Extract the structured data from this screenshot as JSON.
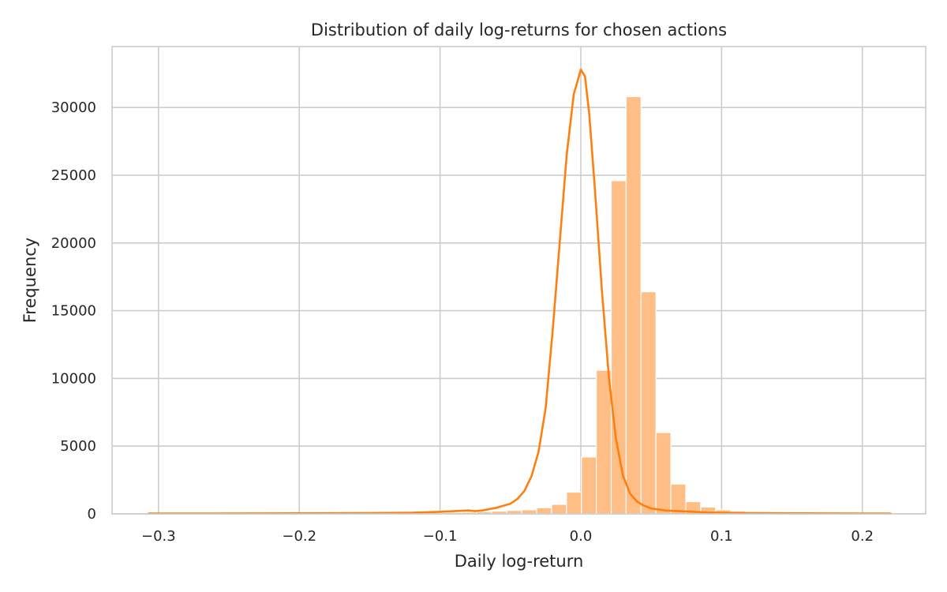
{
  "chart_data": {
    "type": "bar",
    "subtype": "histogram-with-kde",
    "title": "Distribution of daily log-returns for chosen actions",
    "xlabel": "Daily log-return",
    "ylabel": "Frequency",
    "xlim": [
      -0.333,
      0.245
    ],
    "ylim": [
      0,
      34500
    ],
    "xticks": [
      -0.3,
      -0.2,
      -0.1,
      0.0,
      0.1,
      0.2
    ],
    "xtick_labels": [
      "−0.3",
      "−0.2",
      "−0.1",
      "0.0",
      "0.1",
      "0.2"
    ],
    "yticks": [
      0,
      5000,
      10000,
      15000,
      20000,
      25000,
      30000
    ],
    "ytick_labels": [
      "0",
      "5000",
      "10000",
      "15000",
      "20000",
      "25000",
      "30000"
    ],
    "grid": true,
    "bar_color": "#ffbe86",
    "line_color": "#ff7f0e",
    "bins": {
      "start": -0.307,
      "width": 0.0106,
      "counts": [
        30,
        30,
        30,
        30,
        30,
        30,
        30,
        30,
        30,
        30,
        30,
        30,
        30,
        30,
        30,
        30,
        40,
        40,
        60,
        80,
        100,
        120,
        150,
        200,
        250,
        300,
        450,
        700,
        1600,
        4200,
        10600,
        24600,
        30800,
        16400,
        6000,
        2200,
        900,
        500,
        300,
        200,
        150,
        100,
        80,
        60,
        50,
        40,
        40,
        30,
        30,
        30
      ]
    },
    "kde": {
      "x": [
        -0.307,
        -0.26,
        -0.2,
        -0.15,
        -0.12,
        -0.1,
        -0.09,
        -0.08,
        -0.075,
        -0.07,
        -0.065,
        -0.06,
        -0.055,
        -0.05,
        -0.045,
        -0.04,
        -0.035,
        -0.03,
        -0.025,
        -0.02,
        -0.015,
        -0.01,
        -0.005,
        0.0,
        0.003,
        0.006,
        0.01,
        0.015,
        0.02,
        0.025,
        0.03,
        0.035,
        0.04,
        0.045,
        0.05,
        0.06,
        0.07,
        0.08,
        0.09,
        0.1,
        0.12,
        0.15,
        0.2,
        0.22
      ],
      "y": [
        30,
        30,
        40,
        60,
        80,
        150,
        200,
        250,
        200,
        250,
        350,
        450,
        600,
        750,
        1100,
        1700,
        2800,
        4600,
        7800,
        13500,
        20000,
        26500,
        31000,
        32800,
        32300,
        29500,
        24000,
        16500,
        10000,
        5500,
        2800,
        1500,
        900,
        600,
        400,
        250,
        200,
        150,
        100,
        80,
        50,
        40,
        30,
        30
      ]
    }
  }
}
